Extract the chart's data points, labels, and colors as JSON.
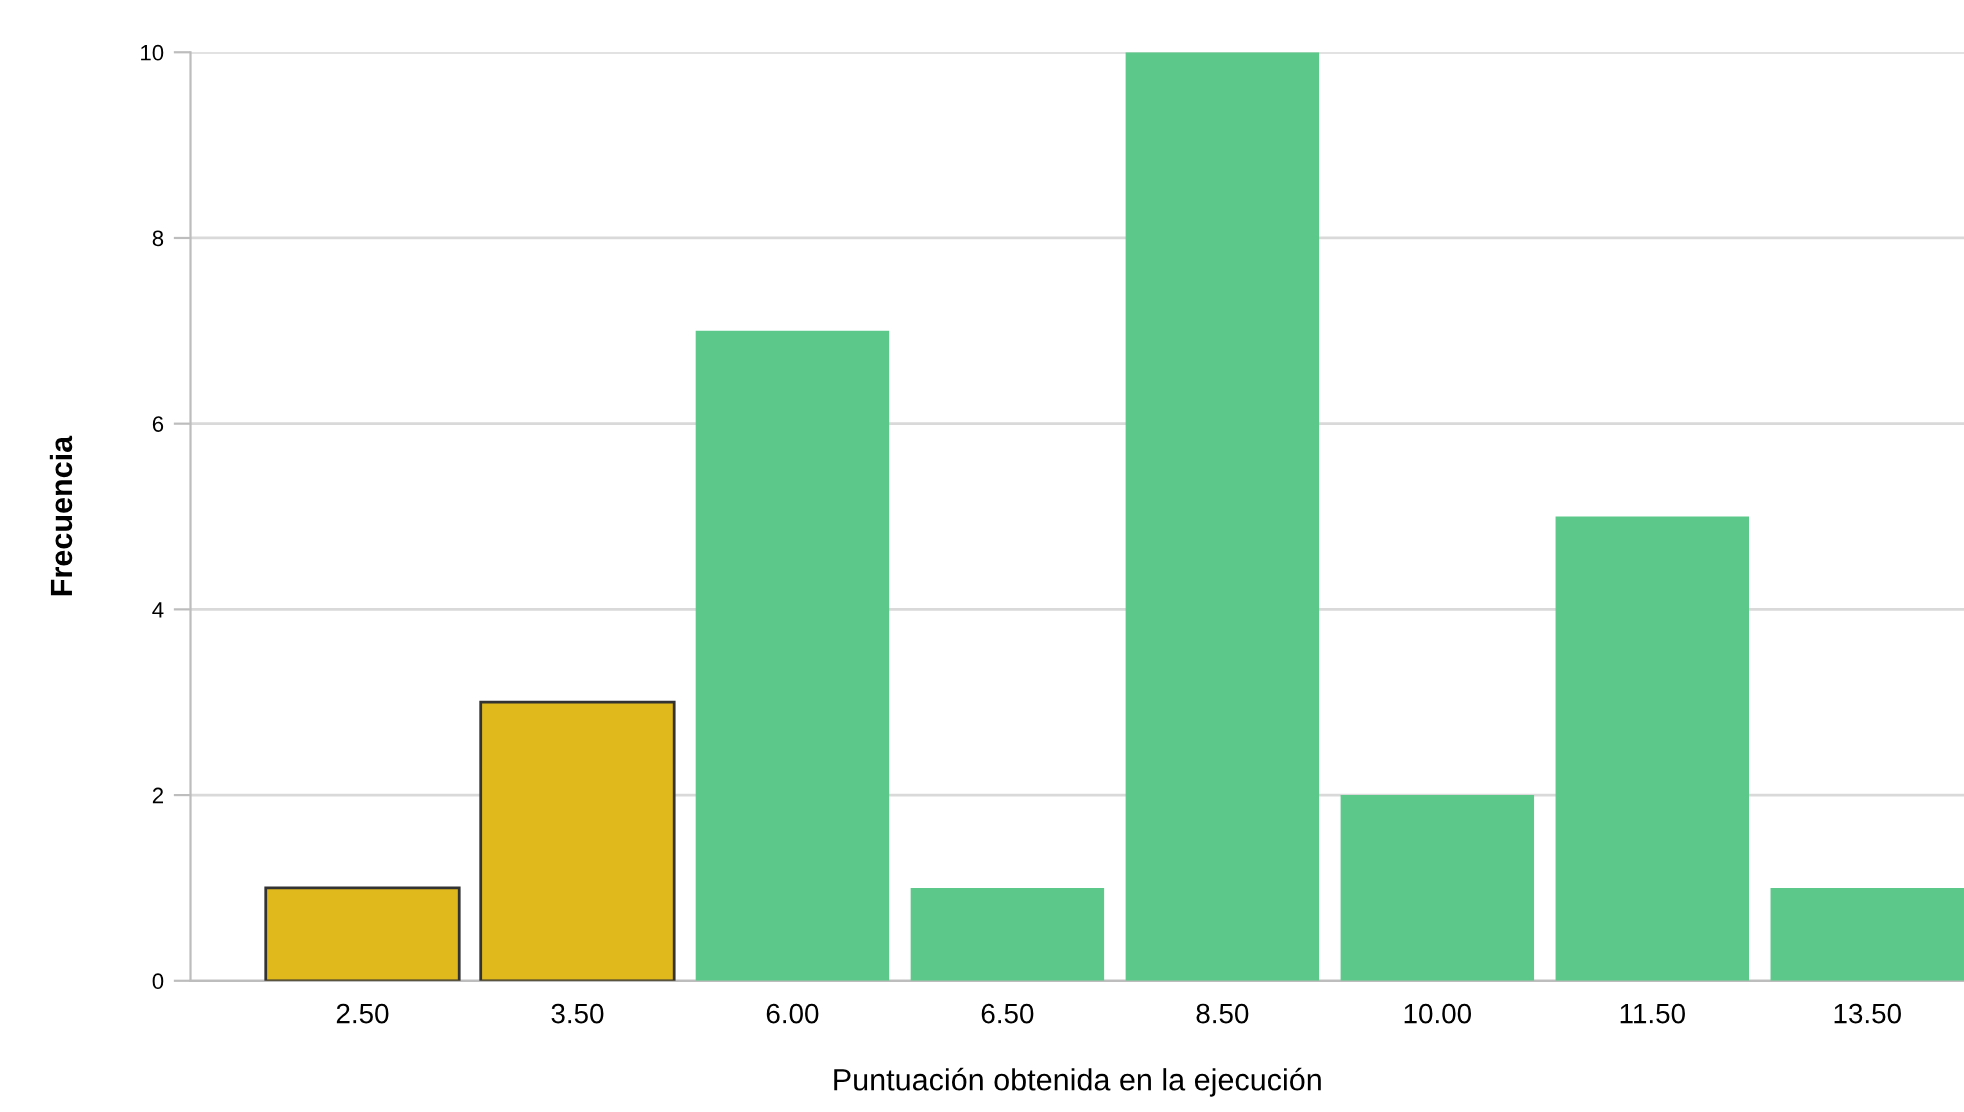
{
  "chart_data": {
    "type": "bar",
    "xlabel": "Puntuación obtenida en la ejecución",
    "ylabel": "Frecuencia",
    "categories": [
      "2.50",
      "3.50",
      "6.00",
      "6.50",
      "8.50",
      "10.00",
      "11.50",
      "13.50"
    ],
    "values": [
      1,
      3,
      7,
      1,
      10,
      2,
      5,
      1
    ],
    "colors": [
      "#e0b91c",
      "#e0b91c",
      "#5cc98a",
      "#5cc98a",
      "#5cc98a",
      "#5cc98a",
      "#5cc98a",
      "#5cc98a"
    ],
    "ylim": [
      0,
      10
    ],
    "yticks": [
      0,
      2,
      4,
      6,
      8,
      10
    ],
    "grid": "y"
  }
}
